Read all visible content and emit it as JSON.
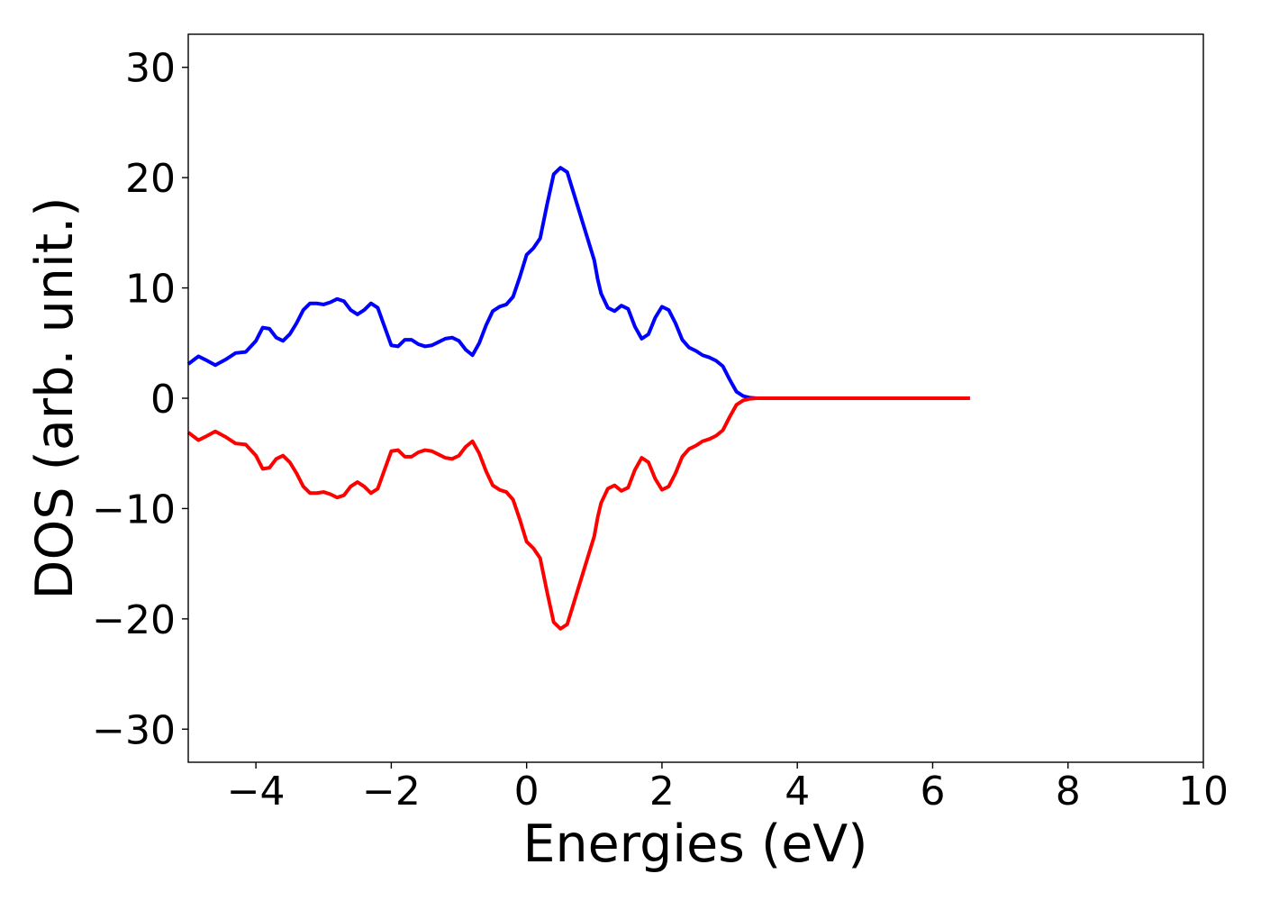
{
  "chart_data": {
    "type": "line",
    "title": "",
    "xlabel": "Energies (eV)",
    "ylabel": "DOS (arb. unit.)",
    "xlim": [
      -5,
      10
    ],
    "ylim": [
      -33,
      33
    ],
    "xticks": [
      -4,
      -2,
      0,
      2,
      4,
      6,
      8,
      10
    ],
    "xtick_labels": [
      "−4",
      "−2",
      "0",
      "2",
      "4",
      "6",
      "8",
      "10"
    ],
    "yticks": [
      -30,
      -20,
      -10,
      0,
      10,
      20,
      30
    ],
    "ytick_labels": [
      "−30",
      "−20",
      "−10",
      "0",
      "10",
      "20",
      "30"
    ],
    "grid": false,
    "legend": "none",
    "series": [
      {
        "color": "#0000ff",
        "x": [
          -5.0,
          -4.85,
          -4.75,
          -4.6,
          -4.45,
          -4.3,
          -4.15,
          -4.0,
          -3.9,
          -3.8,
          -3.7,
          -3.6,
          -3.5,
          -3.4,
          -3.3,
          -3.2,
          -3.1,
          -3.0,
          -2.9,
          -2.8,
          -2.7,
          -2.6,
          -2.5,
          -2.4,
          -2.3,
          -2.2,
          -2.1,
          -2.0,
          -1.9,
          -1.8,
          -1.7,
          -1.6,
          -1.5,
          -1.4,
          -1.3,
          -1.2,
          -1.1,
          -1.0,
          -0.9,
          -0.8,
          -0.7,
          -0.6,
          -0.5,
          -0.4,
          -0.3,
          -0.2,
          -0.1,
          0.0,
          0.1,
          0.2,
          0.3,
          0.4,
          0.5,
          0.6,
          0.7,
          0.8,
          0.9,
          1.0,
          1.05,
          1.1,
          1.2,
          1.3,
          1.4,
          1.5,
          1.6,
          1.7,
          1.8,
          1.9,
          2.0,
          2.1,
          2.2,
          2.3,
          2.4,
          2.5,
          2.6,
          2.7,
          2.8,
          2.9,
          3.0,
          3.1,
          3.2,
          3.3,
          3.4,
          3.5,
          3.6,
          3.7,
          3.8,
          3.9,
          4.0,
          4.1,
          4.2,
          4.3,
          4.4,
          4.6,
          5.0,
          5.5,
          6.0,
          6.5,
          6.55
        ],
        "y": [
          3.1,
          3.8,
          3.5,
          3.0,
          3.5,
          4.1,
          4.2,
          5.2,
          6.4,
          6.3,
          5.5,
          5.2,
          5.8,
          6.8,
          8.0,
          8.6,
          8.6,
          8.5,
          8.7,
          9.0,
          8.8,
          8.0,
          7.6,
          8.0,
          8.6,
          8.2,
          6.5,
          4.8,
          4.7,
          5.3,
          5.3,
          4.9,
          4.7,
          4.8,
          5.1,
          5.4,
          5.5,
          5.2,
          4.4,
          3.9,
          5.0,
          6.6,
          7.9,
          8.3,
          8.5,
          9.2,
          11.0,
          13.0,
          13.6,
          14.5,
          17.5,
          20.3,
          20.9,
          20.5,
          18.5,
          16.5,
          14.5,
          12.5,
          10.8,
          9.5,
          8.2,
          7.9,
          8.4,
          8.1,
          6.5,
          5.4,
          5.8,
          7.3,
          8.3,
          8.0,
          6.8,
          5.3,
          4.6,
          4.3,
          3.9,
          3.7,
          3.4,
          2.9,
          1.7,
          0.6,
          0.2,
          0.05,
          0.0,
          0.0,
          0.0,
          0.0,
          0.0,
          0.0,
          0.0,
          0.0,
          0.0,
          0.0,
          0.0,
          0.0,
          0.0,
          0.0,
          0.0,
          0.0,
          0.0
        ]
      },
      {
        "color": "#ff0000",
        "x": [
          -5.0,
          -4.85,
          -4.75,
          -4.6,
          -4.45,
          -4.3,
          -4.15,
          -4.0,
          -3.9,
          -3.8,
          -3.7,
          -3.6,
          -3.5,
          -3.4,
          -3.3,
          -3.2,
          -3.1,
          -3.0,
          -2.9,
          -2.8,
          -2.7,
          -2.6,
          -2.5,
          -2.4,
          -2.3,
          -2.2,
          -2.1,
          -2.0,
          -1.9,
          -1.8,
          -1.7,
          -1.6,
          -1.5,
          -1.4,
          -1.3,
          -1.2,
          -1.1,
          -1.0,
          -0.9,
          -0.8,
          -0.7,
          -0.6,
          -0.5,
          -0.4,
          -0.3,
          -0.2,
          -0.1,
          0.0,
          0.1,
          0.2,
          0.3,
          0.4,
          0.5,
          0.6,
          0.7,
          0.8,
          0.9,
          1.0,
          1.05,
          1.1,
          1.2,
          1.3,
          1.4,
          1.5,
          1.6,
          1.7,
          1.8,
          1.9,
          2.0,
          2.1,
          2.2,
          2.3,
          2.4,
          2.5,
          2.6,
          2.7,
          2.8,
          2.9,
          3.0,
          3.1,
          3.2,
          3.3,
          3.4,
          3.5,
          3.6,
          3.7,
          3.8,
          3.9,
          4.0,
          4.1,
          4.2,
          4.3,
          4.4,
          4.6,
          5.0,
          5.5,
          6.0,
          6.5,
          6.55
        ],
        "y": [
          -3.1,
          -3.8,
          -3.5,
          -3.0,
          -3.5,
          -4.1,
          -4.2,
          -5.2,
          -6.4,
          -6.3,
          -5.5,
          -5.2,
          -5.8,
          -6.8,
          -8.0,
          -8.6,
          -8.6,
          -8.5,
          -8.7,
          -9.0,
          -8.8,
          -8.0,
          -7.6,
          -8.0,
          -8.6,
          -8.2,
          -6.5,
          -4.8,
          -4.7,
          -5.3,
          -5.3,
          -4.9,
          -4.7,
          -4.8,
          -5.1,
          -5.4,
          -5.5,
          -5.2,
          -4.4,
          -3.9,
          -5.0,
          -6.6,
          -7.9,
          -8.3,
          -8.5,
          -9.2,
          -11.0,
          -13.0,
          -13.6,
          -14.5,
          -17.5,
          -20.3,
          -20.9,
          -20.5,
          -18.5,
          -16.5,
          -14.5,
          -12.5,
          -10.8,
          -9.5,
          -8.2,
          -7.9,
          -8.4,
          -8.1,
          -6.5,
          -5.4,
          -5.8,
          -7.3,
          -8.3,
          -8.0,
          -6.8,
          -5.3,
          -4.6,
          -4.3,
          -3.9,
          -3.7,
          -3.4,
          -2.9,
          -1.7,
          -0.6,
          -0.2,
          -0.05,
          0.0,
          0.0,
          0.0,
          0.0,
          0.0,
          0.0,
          0.0,
          0.0,
          0.0,
          0.0,
          0.0,
          0.0,
          0.0,
          0.0,
          0.0,
          0.0,
          0.0
        ]
      }
    ]
  }
}
